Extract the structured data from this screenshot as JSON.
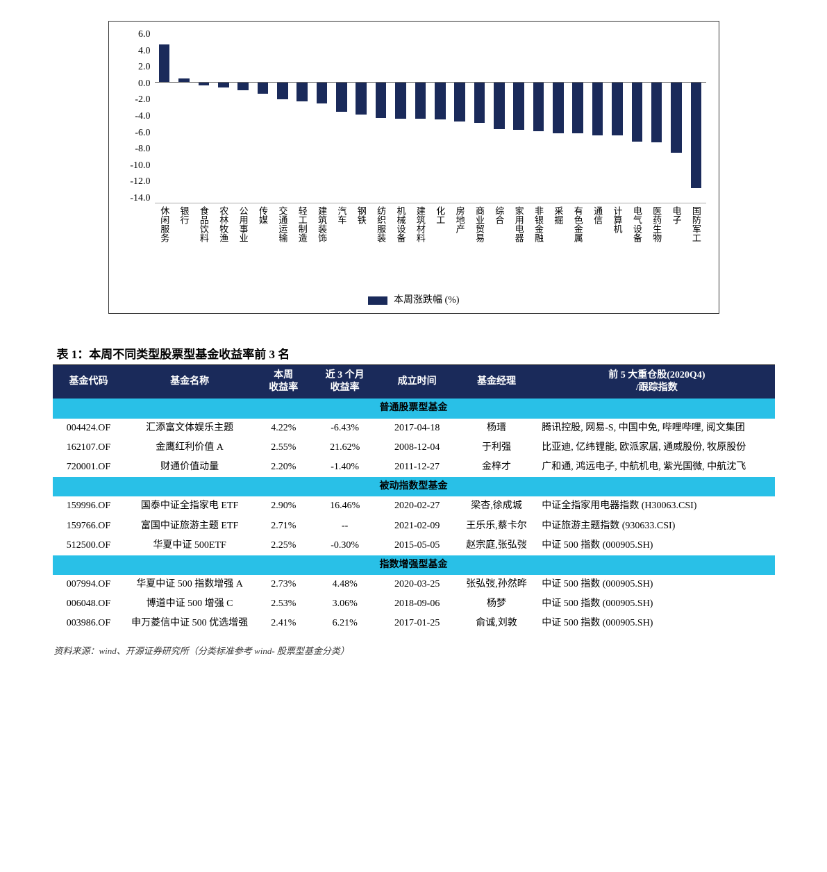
{
  "chart": {
    "type": "bar",
    "bar_color": "#1a2a5a",
    "grid_color": "#d0d0d0",
    "axis_color": "#666666",
    "background": "#ffffff",
    "legend_label": "本周涨跌幅 (%)",
    "y_min": -14.0,
    "y_max": 6.0,
    "y_step": 2.0,
    "y_ticks": [
      "6.0",
      "4.0",
      "2.0",
      "0.0",
      "-2.0",
      "-4.0",
      "-6.0",
      "-8.0",
      "-10.0",
      "-12.0",
      "-14.0"
    ],
    "categories": [
      "休闲服务",
      "银行",
      "食品饮料",
      "农林牧渔",
      "公用事业",
      "传媒",
      "交通运输",
      "轻工制造",
      "建筑装饰",
      "汽车",
      "钢铁",
      "纺织服装",
      "机械设备",
      "建筑材料",
      "化工",
      "房地产",
      "商业贸易",
      "综合",
      "家用电器",
      "非银金融",
      "采掘",
      "有色金属",
      "通信",
      "计算机",
      "电气设备",
      "医药生物",
      "电子",
      "国防军工"
    ],
    "values": [
      4.3,
      0.4,
      -0.4,
      -0.7,
      -1.0,
      -1.4,
      -2.0,
      -2.3,
      -2.5,
      -3.5,
      -3.8,
      -4.2,
      -4.3,
      -4.3,
      -4.4,
      -4.6,
      -4.8,
      -5.5,
      -5.6,
      -5.7,
      -6.0,
      -6.0,
      -6.2,
      -6.2,
      -6.9,
      -7.0,
      -8.2,
      -12.3
    ]
  },
  "table_title": "表 1：本周不同类型股票型基金收益率前 3 名",
  "headers": {
    "code": "基金代码",
    "name": "基金名称",
    "week_ret": "本周\n收益率",
    "m3_ret": "近 3 个月\n收益率",
    "inception": "成立时间",
    "manager": "基金经理",
    "holdings": "前 5 大重仓股(2020Q4)\n/跟踪指数"
  },
  "sections": [
    {
      "label": "普通股票型基金",
      "rows": [
        {
          "code": "004424.OF",
          "name": "汇添富文体娱乐主题",
          "wk": "4.22%",
          "m3": "-6.43%",
          "date": "2017-04-18",
          "mgr": "杨瑨",
          "hold": "腾讯控股, 网易-S, 中国中免, 哔哩哔哩, 阅文集团"
        },
        {
          "code": "162107.OF",
          "name": "金鹰红利价值 A",
          "wk": "2.55%",
          "m3": "21.62%",
          "date": "2008-12-04",
          "mgr": "于利强",
          "hold": "比亚迪, 亿纬锂能, 欧派家居, 通威股份, 牧原股份"
        },
        {
          "code": "720001.OF",
          "name": "财通价值动量",
          "wk": "2.20%",
          "m3": "-1.40%",
          "date": "2011-12-27",
          "mgr": "金梓才",
          "hold": "广和通, 鸿远电子, 中航机电, 紫光国微, 中航沈飞"
        }
      ]
    },
    {
      "label": "被动指数型基金",
      "rows": [
        {
          "code": "159996.OF",
          "name": "国泰中证全指家电 ETF",
          "wk": "2.90%",
          "m3": "16.46%",
          "date": "2020-02-27",
          "mgr": "梁杏,徐成城",
          "hold": "中证全指家用电器指数 (H30063.CSI)"
        },
        {
          "code": "159766.OF",
          "name": "富国中证旅游主题 ETF",
          "wk": "2.71%",
          "m3": "--",
          "date": "2021-02-09",
          "mgr": "王乐乐,蔡卡尔",
          "hold": "中证旅游主题指数 (930633.CSI)"
        },
        {
          "code": "512500.OF",
          "name": "华夏中证 500ETF",
          "wk": "2.25%",
          "m3": "-0.30%",
          "date": "2015-05-05",
          "mgr": "赵宗庭,张弘弢",
          "hold": "中证 500 指数 (000905.SH)"
        }
      ]
    },
    {
      "label": "指数增强型基金",
      "rows": [
        {
          "code": "007994.OF",
          "name": "华夏中证 500 指数增强 A",
          "wk": "2.73%",
          "m3": "4.48%",
          "date": "2020-03-25",
          "mgr": "张弘弢,孙然晔",
          "hold": "中证 500 指数 (000905.SH)"
        },
        {
          "code": "006048.OF",
          "name": "博道中证 500 增强 C",
          "wk": "2.53%",
          "m3": "3.06%",
          "date": "2018-09-06",
          "mgr": "杨梦",
          "hold": "中证 500 指数 (000905.SH)"
        },
        {
          "code": "003986.OF",
          "name": "申万菱信中证 500 优选增强",
          "wk": "2.41%",
          "m3": "6.21%",
          "date": "2017-01-25",
          "mgr": "俞诚,刘敦",
          "hold": "中证 500 指数 (000905.SH)"
        }
      ]
    }
  ],
  "source_note": "资料来源：wind、开源证券研究所（分类标准参考 wind- 股票型基金分类）"
}
